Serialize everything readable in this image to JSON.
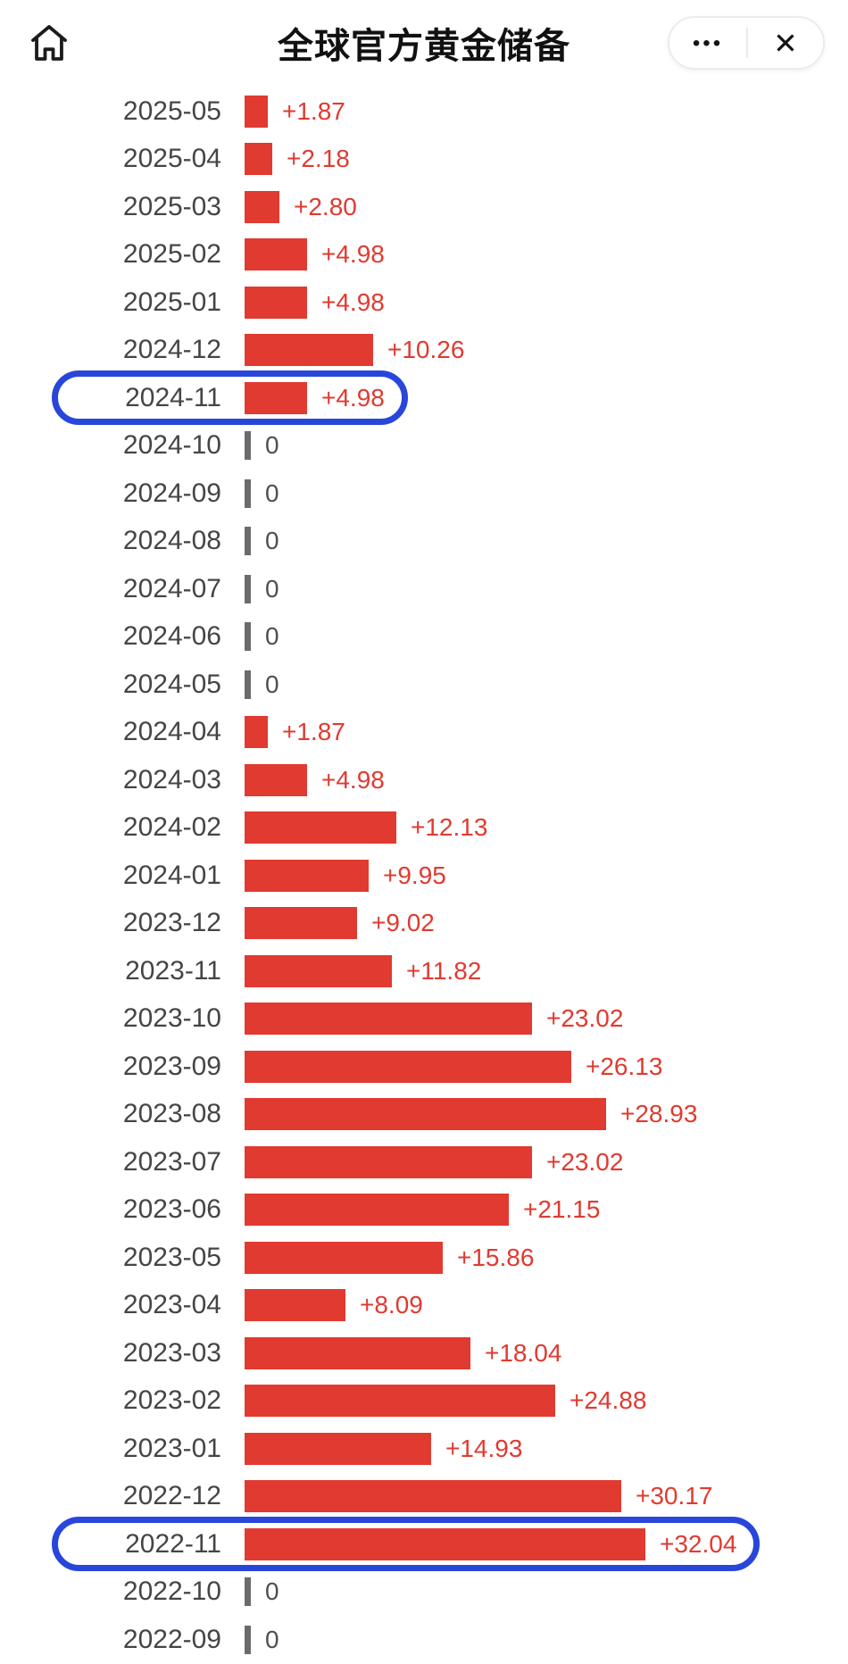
{
  "header": {
    "title": "全球官方黄金储备",
    "more_label": "•••",
    "close_label": "✕"
  },
  "colors": {
    "bar": "#e13a30",
    "value_text": "#e13a30",
    "date_text": "#454545",
    "zero_text": "#4f4f4f",
    "zero_tick": "#6b6b6b",
    "highlight": "#2946db"
  },
  "chart_data": {
    "type": "bar",
    "orientation": "horizontal",
    "title": "全球官方黄金储备",
    "xlabel": "",
    "ylabel": "",
    "xlim": [
      0,
      34
    ],
    "grid": false,
    "legend": null,
    "categories": [
      "2025-05",
      "2025-04",
      "2025-03",
      "2025-02",
      "2025-01",
      "2024-12",
      "2024-11",
      "2024-10",
      "2024-09",
      "2024-08",
      "2024-07",
      "2024-06",
      "2024-05",
      "2024-04",
      "2024-03",
      "2024-02",
      "2024-01",
      "2023-12",
      "2023-11",
      "2023-10",
      "2023-09",
      "2023-08",
      "2023-07",
      "2023-06",
      "2023-05",
      "2023-04",
      "2023-03",
      "2023-02",
      "2023-01",
      "2022-12",
      "2022-11",
      "2022-10",
      "2022-09"
    ],
    "values": [
      1.87,
      2.18,
      2.8,
      4.98,
      4.98,
      10.26,
      4.98,
      0,
      0,
      0,
      0,
      0,
      0,
      1.87,
      4.98,
      12.13,
      9.95,
      9.02,
      11.82,
      23.02,
      26.13,
      28.93,
      23.02,
      21.15,
      15.86,
      8.09,
      18.04,
      24.88,
      14.93,
      30.17,
      32.04,
      0,
      0
    ],
    "value_labels": [
      "+1.87",
      "+2.18",
      "+2.80",
      "+4.98",
      "+4.98",
      "+10.26",
      "+4.98",
      "0",
      "0",
      "0",
      "0",
      "0",
      "0",
      "+1.87",
      "+4.98",
      "+12.13",
      "+9.95",
      "+9.02",
      "+11.82",
      "+23.02",
      "+26.13",
      "+28.93",
      "+23.02",
      "+21.15",
      "+15.86",
      "+8.09",
      "+18.04",
      "+24.88",
      "+14.93",
      "+30.17",
      "+32.04",
      "0",
      "0"
    ],
    "highlighted_categories": [
      "2024-11",
      "2022-11"
    ]
  }
}
